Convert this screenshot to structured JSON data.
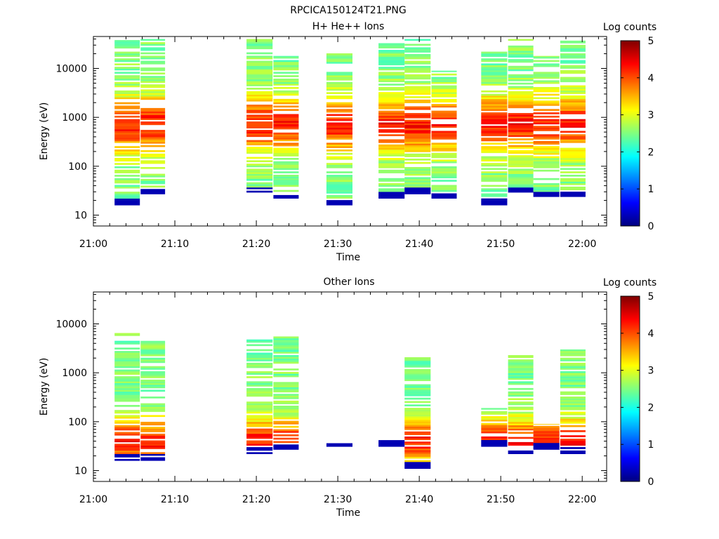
{
  "figure_title": "RPCICA150124T21.PNG",
  "chart_data": [
    {
      "type": "heatmap",
      "title": "H+ He++ Ions",
      "xlabel": "Time",
      "ylabel": "Energy (eV)",
      "x_range": [
        "21:00",
        "22:03"
      ],
      "y_range": [
        6,
        45000
      ],
      "y_scale": "log",
      "x_ticks": [
        "21:00",
        "21:10",
        "21:20",
        "21:30",
        "21:40",
        "21:50",
        "22:00"
      ],
      "y_ticks": [
        "10",
        "100",
        "1000",
        "10000"
      ],
      "grid": false,
      "colorbar": {
        "label": "Log counts",
        "range": [
          0,
          5
        ],
        "ticks": [
          "0",
          "1",
          "2",
          "3",
          "4",
          "5"
        ]
      },
      "time_columns": [
        {
          "t_start": "21:02.6",
          "t_end": "21:05.7",
          "e_min": 16,
          "e_max": 38000
        },
        {
          "t_start": "21:05.8",
          "t_end": "21:08.8",
          "e_min": 27,
          "e_max": 40000
        },
        {
          "t_start": "21:18.8",
          "t_end": "21:22.0",
          "e_min": 27,
          "e_max": 40000
        },
        {
          "t_start": "21:22.1",
          "t_end": "21:25.2",
          "e_min": 22,
          "e_max": 18000
        },
        {
          "t_start": "21:28.6",
          "t_end": "21:31.8",
          "e_min": 16,
          "e_max": 21000
        },
        {
          "t_start": "21:35.0",
          "t_end": "21:38.2",
          "e_min": 22,
          "e_max": 34000
        },
        {
          "t_start": "21:38.2",
          "t_end": "21:41.4",
          "e_min": 27,
          "e_max": 40000
        },
        {
          "t_start": "21:41.5",
          "t_end": "21:44.6",
          "e_min": 22,
          "e_max": 9000
        },
        {
          "t_start": "21:47.6",
          "t_end": "21:50.8",
          "e_min": 16,
          "e_max": 23000
        },
        {
          "t_start": "21:50.9",
          "t_end": "21:54.0",
          "e_min": 27,
          "e_max": 40000
        },
        {
          "t_start": "21:54.0",
          "t_end": "21:57.2",
          "e_min": 22,
          "e_max": 18000
        },
        {
          "t_start": "21:57.3",
          "t_end": "22:00.4",
          "e_min": 22,
          "e_max": 37000
        }
      ]
    },
    {
      "type": "heatmap",
      "title": "Other Ions",
      "xlabel": "Time",
      "ylabel": "Energy (eV)",
      "x_range": [
        "21:00",
        "22:03"
      ],
      "y_range": [
        6,
        45000
      ],
      "y_scale": "log",
      "x_ticks": [
        "21:00",
        "21:10",
        "21:20",
        "21:30",
        "21:40",
        "21:50",
        "22:00"
      ],
      "y_ticks": [
        "10",
        "100",
        "1000",
        "10000"
      ],
      "grid": false,
      "colorbar": {
        "label": "Log counts",
        "range": [
          0,
          5
        ],
        "ticks": [
          "0",
          "1",
          "2",
          "3",
          "4",
          "5"
        ]
      },
      "time_columns": [
        {
          "t_start": "21:02.6",
          "t_end": "21:05.7",
          "e_min": 16,
          "e_max": 6500
        },
        {
          "t_start": "21:05.8",
          "t_end": "21:08.8",
          "e_min": 16,
          "e_max": 4500
        },
        {
          "t_start": "21:18.8",
          "t_end": "21:22.0",
          "e_min": 22,
          "e_max": 4800
        },
        {
          "t_start": "21:22.1",
          "t_end": "21:25.2",
          "e_min": 27,
          "e_max": 5700
        },
        {
          "t_start": "21:28.6",
          "t_end": "21:31.8",
          "e_min": 31,
          "e_max": 37
        },
        {
          "t_start": "21:35.0",
          "t_end": "21:38.2",
          "e_min": 31,
          "e_max": 42
        },
        {
          "t_start": "21:38.2",
          "t_end": "21:41.4",
          "e_min": 11,
          "e_max": 2200
        },
        {
          "t_start": "21:47.6",
          "t_end": "21:50.8",
          "e_min": 31,
          "e_max": 190
        },
        {
          "t_start": "21:50.9",
          "t_end": "21:54.0",
          "e_min": 22,
          "e_max": 2300
        },
        {
          "t_start": "21:54.0",
          "t_end": "21:57.2",
          "e_min": 27,
          "e_max": 90
        },
        {
          "t_start": "21:57.3",
          "t_end": "22:00.4",
          "e_min": 22,
          "e_max": 3000
        }
      ]
    }
  ]
}
